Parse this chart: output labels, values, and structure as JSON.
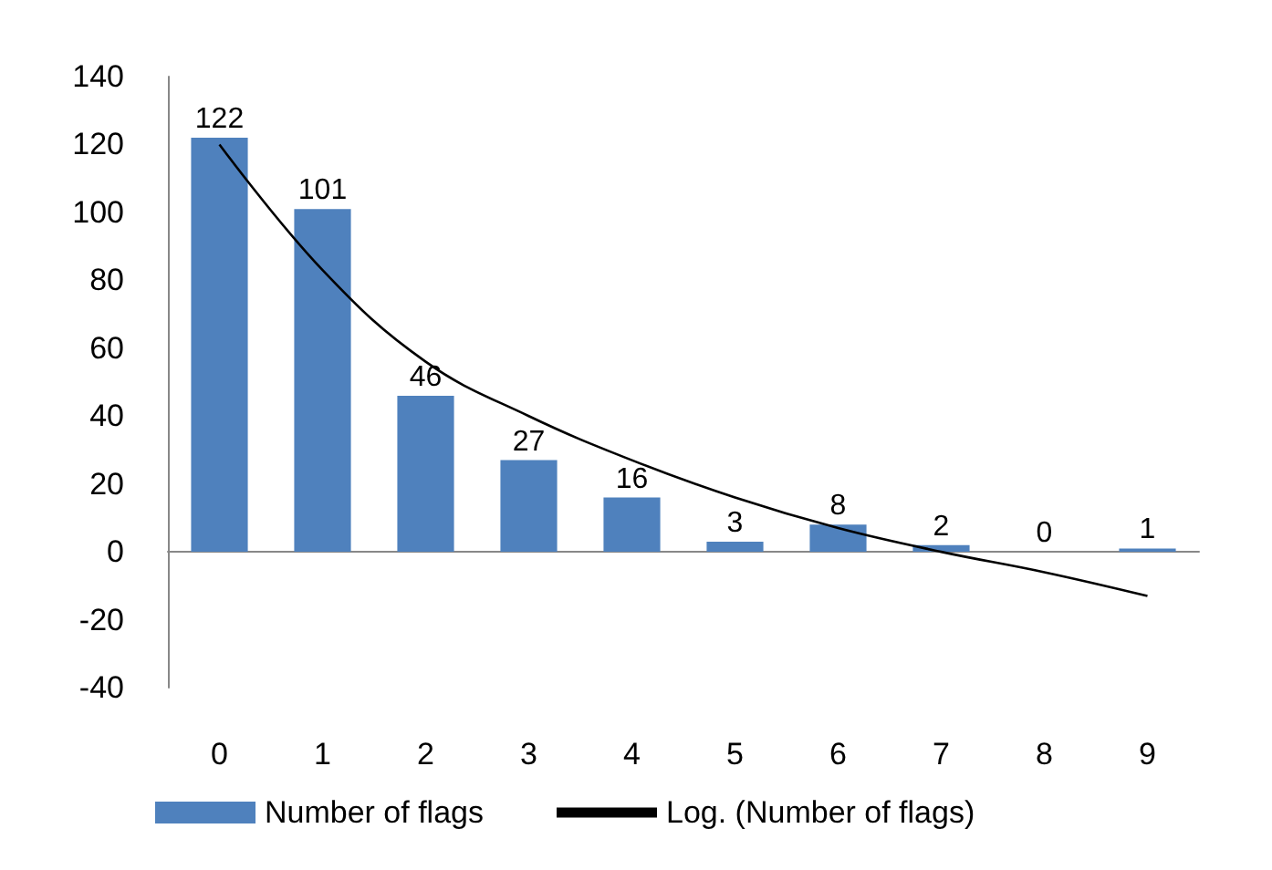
{
  "chart_data": {
    "type": "bar",
    "categories": [
      "0",
      "1",
      "2",
      "3",
      "4",
      "5",
      "6",
      "7",
      "8",
      "9"
    ],
    "series": [
      {
        "name": "Number of flags",
        "color": "#4f81bd",
        "values": [
          122,
          101,
          46,
          27,
          16,
          3,
          8,
          2,
          0,
          1
        ],
        "value_labels": [
          "122",
          "101",
          "46",
          "27",
          "16",
          "3",
          "8",
          "2",
          "0",
          "1"
        ]
      },
      {
        "name": "Log. (Number of flags)",
        "type": "line",
        "color": "#000000",
        "x": [
          "0",
          "1",
          "2",
          "3",
          "4",
          "5",
          "6",
          "7",
          "8",
          "9"
        ],
        "values": [
          120,
          83,
          56,
          40,
          27,
          16,
          7,
          0,
          -6,
          -13
        ]
      }
    ],
    "ylim": [
      -40,
      140
    ],
    "yticks": [
      -40,
      -20,
      0,
      20,
      40,
      60,
      80,
      100,
      120,
      140
    ],
    "legend": "bottom",
    "marker": "none"
  }
}
